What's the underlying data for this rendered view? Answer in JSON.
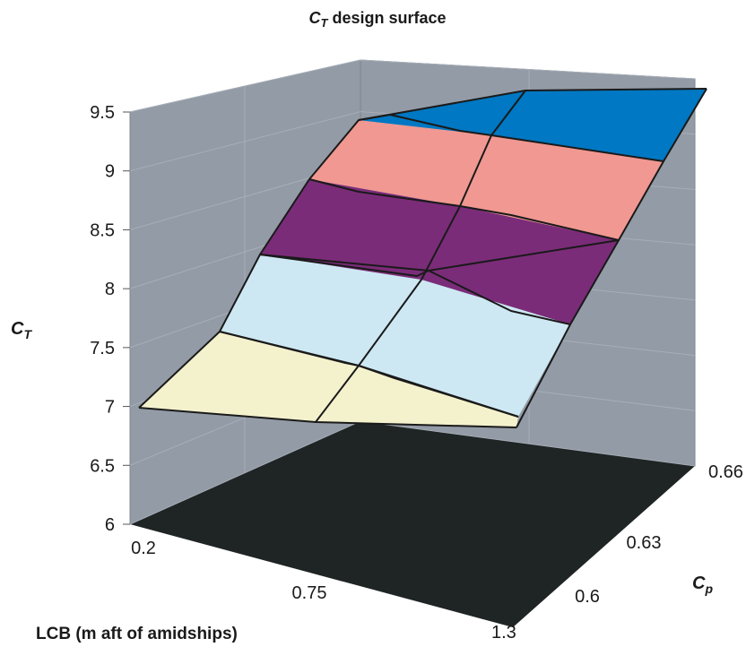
{
  "chart_data": {
    "type": "surface",
    "title_main": "C",
    "title_sub": "T",
    "title_rest": " design surface",
    "x_axis": {
      "label": "LCB (m aft of amidships)",
      "ticks": [
        "0.2",
        "0.75",
        "1.3"
      ],
      "values": [
        0.2,
        0.75,
        1.3
      ]
    },
    "y_axis": {
      "label_main": "C",
      "label_sub": "p",
      "ticks": [
        "0.6",
        "0.63",
        "0.66"
      ],
      "values": [
        0.6,
        0.63,
        0.66
      ]
    },
    "z_axis": {
      "label_main": "C",
      "label_sub": "T",
      "ticks": [
        "6",
        "6.5",
        "7",
        "7.5",
        "8",
        "8.5",
        "9",
        "9.5"
      ],
      "range": [
        6,
        9.5
      ]
    },
    "grid": [
      [
        7.0,
        7.85,
        9.25
      ],
      [
        7.1,
        7.95,
        9.35
      ],
      [
        7.2,
        8.05,
        9.55
      ]
    ],
    "bands": [
      {
        "range": [
          7.0,
          7.5
        ],
        "color": "#f4f2cd"
      },
      {
        "range": [
          7.5,
          8.0
        ],
        "color": "#cde8f3"
      },
      {
        "range": [
          8.0,
          8.5
        ],
        "color": "#7b2c79"
      },
      {
        "range": [
          8.5,
          9.0
        ],
        "color": "#f09891"
      },
      {
        "range": [
          9.0,
          9.5
        ],
        "color": "#0078c3"
      }
    ],
    "colors": {
      "walls": "#939ba6",
      "floor": "#1f2424",
      "gridline": "#a7aeb8",
      "edge": "#1a1a1a"
    }
  }
}
